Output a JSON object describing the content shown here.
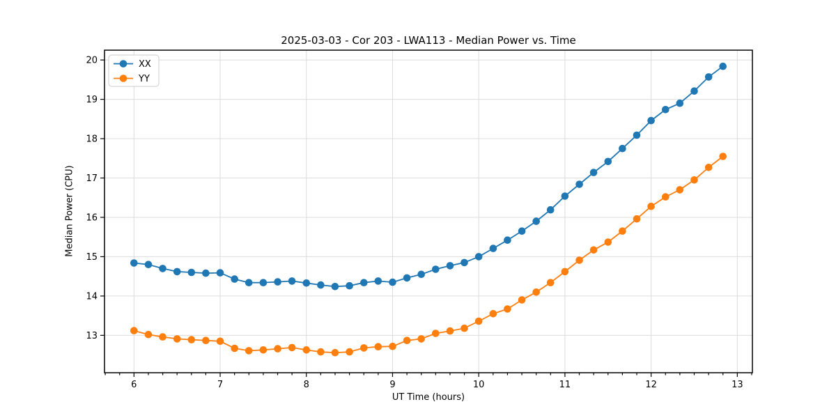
{
  "chart_data": {
    "type": "line",
    "title": "2025-03-03 - Cor 203 - LWA113 - Median Power vs. Time",
    "xlabel": "UT Time (hours)",
    "ylabel": "Median Power (CPU)",
    "xlim": [
      5.658,
      13.175
    ],
    "ylim": [
      12.05,
      20.25
    ],
    "xticks": [
      6,
      7,
      8,
      9,
      10,
      11,
      12,
      13
    ],
    "yticks": [
      13,
      14,
      15,
      16,
      17,
      18,
      19,
      20
    ],
    "minor_xtick_step_hours": 0.1667,
    "grid": true,
    "legend_position": "upper left",
    "x": [
      6.0,
      6.167,
      6.333,
      6.5,
      6.667,
      6.833,
      7.0,
      7.167,
      7.333,
      7.5,
      7.667,
      7.833,
      8.0,
      8.167,
      8.333,
      8.5,
      8.667,
      8.833,
      9.0,
      9.167,
      9.333,
      9.5,
      9.667,
      9.833,
      10.0,
      10.167,
      10.333,
      10.5,
      10.667,
      10.833,
      11.0,
      11.167,
      11.333,
      11.5,
      11.667,
      11.833,
      12.0,
      12.167,
      12.333,
      12.5,
      12.667,
      12.833
    ],
    "series": [
      {
        "name": "XX",
        "color": "#1f77b4",
        "values": [
          14.84,
          14.8,
          14.7,
          14.62,
          14.6,
          14.58,
          14.59,
          14.43,
          14.34,
          14.34,
          14.36,
          14.38,
          14.33,
          14.28,
          14.24,
          14.26,
          14.34,
          14.38,
          14.35,
          14.46,
          14.55,
          14.68,
          14.77,
          14.85,
          15.0,
          15.21,
          15.42,
          15.65,
          15.9,
          16.19,
          16.54,
          16.84,
          17.14,
          17.42,
          17.75,
          18.09,
          18.46,
          18.74,
          18.9,
          19.21,
          19.57,
          19.84
        ]
      },
      {
        "name": "YY",
        "color": "#ff7f0e",
        "values": [
          13.12,
          13.02,
          12.96,
          12.91,
          12.89,
          12.87,
          12.85,
          12.67,
          12.61,
          12.63,
          12.66,
          12.69,
          12.63,
          12.58,
          12.56,
          12.58,
          12.68,
          12.71,
          12.72,
          12.87,
          12.91,
          13.05,
          13.11,
          13.18,
          13.36,
          13.55,
          13.67,
          13.9,
          14.1,
          14.34,
          14.62,
          14.91,
          15.17,
          15.37,
          15.65,
          15.96,
          16.28,
          16.52,
          16.7,
          16.95,
          17.27,
          17.55
        ]
      }
    ]
  },
  "style": {
    "grid_color": "#dcdcdc",
    "spine_color": "#000000",
    "tick_color": "#000000",
    "legend_border_color": "#cccccc",
    "legend_bg_color": "#ffffff",
    "background_color": "#ffffff"
  }
}
